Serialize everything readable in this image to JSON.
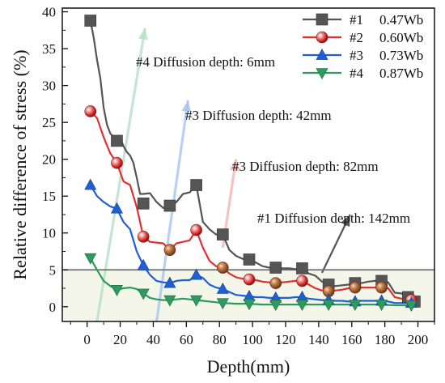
{
  "chart_data": {
    "type": "line",
    "xlabel": "Depth(mm)",
    "ylabel": "Relative difference of stress (%)",
    "xlim": [
      -15,
      210
    ],
    "ylim": [
      -2,
      40.5
    ],
    "xticks": [
      0,
      20,
      40,
      60,
      80,
      100,
      120,
      140,
      160,
      180,
      200
    ],
    "yticks": [
      0,
      5,
      10,
      15,
      20,
      25,
      30,
      35,
      40
    ],
    "legend_position": "top-right",
    "series": [
      {
        "name": "#1",
        "value_label": "0.47Wb",
        "color": "#555555",
        "marker": "square",
        "markers": {
          "x": [
            2,
            18,
            34,
            50,
            66,
            82,
            98,
            114,
            130,
            146,
            162,
            178,
            194,
            198
          ],
          "y": [
            38.8,
            22.5,
            14.0,
            13.7,
            16.5,
            9.8,
            6.4,
            5.3,
            5.2,
            3.0,
            3.2,
            3.5,
            1.3,
            0.7
          ]
        },
        "line": {
          "x": [
            2,
            4,
            6,
            8,
            10,
            12,
            14,
            16,
            18,
            20,
            22,
            24,
            26,
            28,
            30,
            32,
            34,
            38,
            42,
            46,
            50,
            54,
            58,
            62,
            66,
            70,
            74,
            78,
            82,
            86,
            90,
            94,
            98,
            102,
            106,
            110,
            114,
            118,
            122,
            126,
            130,
            134,
            138,
            142,
            146,
            150,
            154,
            158,
            162,
            166,
            170,
            174,
            178,
            182,
            186,
            190,
            194,
            198
          ],
          "y": [
            38.8,
            36.5,
            33.5,
            31.0,
            27.0,
            24.7,
            23.5,
            23.0,
            22.5,
            22.8,
            21.8,
            21.0,
            20.5,
            19.5,
            17.5,
            15.3,
            15.3,
            15.4,
            14.2,
            13.4,
            13.7,
            14.2,
            15.3,
            15.5,
            16.5,
            11.5,
            10.5,
            9.8,
            9.8,
            7.7,
            6.9,
            6.5,
            6.4,
            6.0,
            5.5,
            5.3,
            5.3,
            5.2,
            5.2,
            5.1,
            5.2,
            4.5,
            4.2,
            3.4,
            3.0,
            2.8,
            2.9,
            3.0,
            3.2,
            3.2,
            3.4,
            3.5,
            3.5,
            3.3,
            1.9,
            1.8,
            1.3,
            0.7
          ]
        }
      },
      {
        "name": "#2",
        "value_label": "0.60Wb",
        "color": "#e03030",
        "marker": "sphere",
        "markers": {
          "x": [
            2,
            18,
            34,
            50,
            66,
            82,
            98,
            114,
            130,
            146,
            162,
            178,
            196
          ],
          "y": [
            26.5,
            19.5,
            9.5,
            7.7,
            10.4,
            5.3,
            3.7,
            3.2,
            3.5,
            2.1,
            2.6,
            2.6,
            0.9
          ]
        },
        "line": {
          "x": [
            2,
            6,
            10,
            14,
            18,
            22,
            26,
            30,
            34,
            38,
            42,
            46,
            50,
            54,
            58,
            62,
            66,
            70,
            74,
            78,
            82,
            86,
            90,
            94,
            98,
            102,
            106,
            110,
            114,
            118,
            122,
            126,
            130,
            134,
            138,
            142,
            146,
            150,
            154,
            158,
            162,
            166,
            170,
            174,
            178,
            182,
            186,
            190,
            196
          ],
          "y": [
            26.5,
            25.6,
            23.0,
            20.8,
            19.5,
            17.0,
            16.5,
            13.5,
            9.5,
            8.8,
            8.7,
            8.6,
            7.7,
            8.6,
            8.8,
            9.0,
            10.4,
            8.0,
            6.2,
            5.5,
            5.3,
            4.5,
            4.0,
            3.8,
            3.7,
            3.6,
            3.4,
            3.3,
            3.2,
            3.3,
            3.4,
            3.5,
            3.5,
            3.0,
            2.5,
            2.2,
            2.1,
            2.2,
            2.3,
            2.5,
            2.6,
            2.6,
            2.6,
            2.6,
            2.6,
            2.5,
            1.3,
            1.1,
            0.9
          ]
        }
      },
      {
        "name": "#3",
        "value_label": "0.73Wb",
        "color": "#1f5fd6",
        "marker": "triangle-up",
        "markers": {
          "x": [
            2,
            18,
            34,
            50,
            66,
            82,
            98,
            114,
            130,
            146,
            162,
            178,
            196
          ],
          "y": [
            16.5,
            13.3,
            5.6,
            3.2,
            4.3,
            2.4,
            1.4,
            1.2,
            1.3,
            0.9,
            0.7,
            0.8,
            0.5
          ]
        },
        "line": {
          "x": [
            2,
            6,
            10,
            14,
            18,
            22,
            26,
            30,
            34,
            38,
            42,
            46,
            50,
            54,
            58,
            62,
            66,
            70,
            74,
            78,
            82,
            86,
            90,
            94,
            98,
            102,
            106,
            110,
            114,
            118,
            122,
            126,
            130,
            134,
            138,
            142,
            146,
            150,
            154,
            158,
            162,
            166,
            170,
            174,
            178,
            182,
            186,
            190,
            196
          ],
          "y": [
            16.5,
            15.0,
            14.2,
            13.6,
            13.3,
            11.5,
            10.5,
            7.5,
            5.6,
            4.3,
            3.5,
            3.3,
            3.2,
            3.5,
            3.6,
            3.6,
            4.3,
            3.9,
            3.0,
            2.6,
            2.4,
            2.0,
            1.6,
            1.5,
            1.4,
            1.3,
            1.3,
            1.2,
            1.2,
            1.2,
            1.2,
            1.3,
            1.3,
            1.1,
            1.0,
            0.9,
            0.9,
            0.8,
            0.8,
            0.7,
            0.7,
            0.8,
            0.8,
            0.8,
            0.8,
            0.7,
            0.5,
            0.5,
            0.5
          ]
        }
      },
      {
        "name": "#4",
        "value_label": "0.87Wb",
        "color": "#2e9b5e",
        "marker": "triangle-down",
        "markers": {
          "x": [
            2,
            18,
            34,
            50,
            66,
            82,
            98,
            114,
            130,
            146,
            162,
            178,
            196
          ],
          "y": [
            6.6,
            2.3,
            1.8,
            0.9,
            0.9,
            0.5,
            0.4,
            0.3,
            0.3,
            0.3,
            0.3,
            0.3,
            0.2
          ]
        },
        "line": {
          "x": [
            2,
            6,
            10,
            14,
            18,
            22,
            26,
            30,
            34,
            38,
            42,
            46,
            50,
            54,
            58,
            62,
            66,
            70,
            74,
            78,
            82,
            90,
            98,
            106,
            114,
            122,
            130,
            138,
            146,
            154,
            162,
            170,
            178,
            186,
            196
          ],
          "y": [
            6.6,
            5.0,
            3.5,
            2.8,
            2.3,
            2.5,
            2.6,
            2.4,
            1.8,
            1.2,
            1.0,
            0.9,
            0.9,
            1.0,
            1.1,
            1.0,
            0.9,
            0.8,
            0.7,
            0.6,
            0.5,
            0.4,
            0.4,
            0.3,
            0.3,
            0.3,
            0.3,
            0.3,
            0.3,
            0.3,
            0.3,
            0.3,
            0.3,
            0.2,
            0.2
          ]
        }
      }
    ],
    "reference_line": {
      "y": 5,
      "color": "#6b7072"
    },
    "annotations": [
      {
        "text": "#4 Diffusion depth: 6mm",
        "from": [
          6,
          -2
        ],
        "to": [
          35,
          37.8
        ],
        "color": "#b5e0c4"
      },
      {
        "text": "#3 Diffusion depth: 42mm",
        "from": [
          42,
          -2
        ],
        "to": [
          61,
          28
        ],
        "color": "#a8c4f0"
      },
      {
        "text": "#3 Diffusion depth: 82mm",
        "from": [
          82,
          8
        ],
        "to": [
          90,
          20
        ],
        "color": "#f4b3b3"
      },
      {
        "text": "#1 Diffusion depth: 142mm",
        "from": [
          142,
          4.6
        ],
        "to": [
          159,
          12.5
        ],
        "color": "#555555"
      }
    ]
  }
}
